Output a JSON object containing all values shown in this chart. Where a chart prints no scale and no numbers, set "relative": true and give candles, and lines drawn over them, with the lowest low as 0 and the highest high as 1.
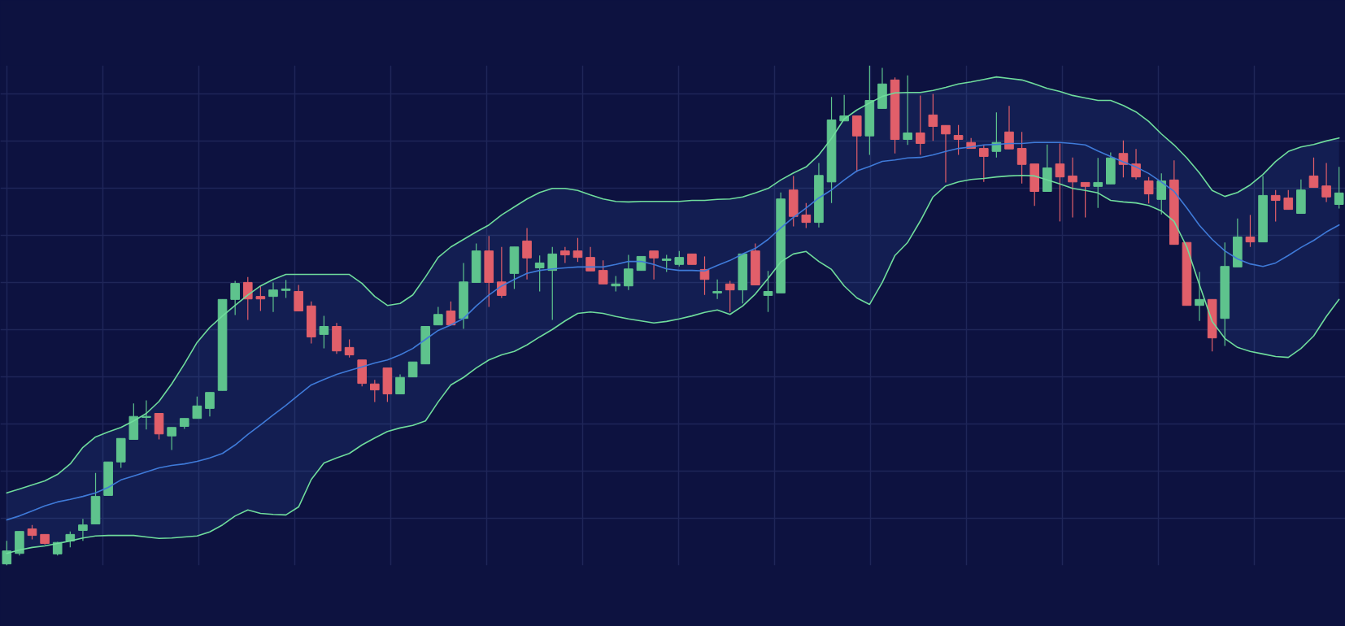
{
  "chart_data": {
    "type": "candlestick",
    "relative": true,
    "grid": true,
    "categories": [
      null,
      null,
      null,
      null,
      null,
      null,
      null,
      null,
      null,
      null,
      null,
      null,
      null,
      null,
      null,
      null,
      null,
      null,
      null,
      null,
      null,
      null,
      null,
      null,
      null,
      null,
      null,
      null,
      null,
      null,
      null,
      null,
      null,
      null,
      null,
      null,
      null,
      null,
      null,
      null,
      null,
      null,
      null,
      null,
      null,
      null,
      null,
      null,
      null,
      null,
      null,
      null,
      null,
      null,
      null,
      null,
      null,
      null,
      null,
      null,
      null,
      null,
      null,
      null,
      null,
      null,
      null,
      null,
      null,
      null,
      null,
      null,
      null,
      null,
      null,
      null,
      null,
      null,
      null,
      null,
      null,
      null,
      null,
      null,
      null,
      null,
      null,
      null,
      null,
      null,
      null,
      null,
      null,
      null,
      null,
      null,
      null,
      null,
      null,
      null,
      null,
      null,
      null,
      null,
      null,
      null
    ],
    "ohlc": [
      [
        0.003,
        0.049,
        0,
        0.029
      ],
      [
        0.024,
        0.068,
        0.02,
        0.068
      ],
      [
        0.073,
        0.081,
        0.052,
        0.06
      ],
      [
        0.062,
        0.062,
        0.042,
        0.044
      ],
      [
        0.023,
        0.047,
        0.02,
        0.046
      ],
      [
        0.049,
        0.068,
        0.036,
        0.062
      ],
      [
        0.07,
        0.093,
        0.049,
        0.081
      ],
      [
        0.083,
        0.185,
        0.083,
        0.138
      ],
      [
        0.14,
        0.207,
        0.14,
        0.207
      ],
      [
        0.207,
        0.254,
        0.195,
        0.254
      ],
      [
        0.252,
        0.324,
        0.252,
        0.298
      ],
      [
        0.296,
        0.33,
        0.272,
        0.298
      ],
      [
        0.304,
        0.304,
        0.252,
        0.263
      ],
      [
        0.259,
        0.276,
        0.231,
        0.276
      ],
      [
        0.278,
        0.294,
        0.273,
        0.294
      ],
      [
        0.294,
        0.338,
        0.294,
        0.319
      ],
      [
        0.314,
        0.346,
        0.298,
        0.346
      ],
      [
        0.35,
        0.532,
        0.35,
        0.532
      ],
      [
        0.532,
        0.569,
        0.501,
        0.564
      ],
      [
        0.566,
        0.577,
        0.491,
        0.533
      ],
      [
        0.538,
        0.558,
        0.509,
        0.533
      ],
      [
        0.538,
        0.566,
        0.507,
        0.551
      ],
      [
        0.55,
        0.571,
        0.535,
        0.553
      ],
      [
        0.548,
        0.561,
        0.509,
        0.509
      ],
      [
        0.519,
        0.528,
        0.444,
        0.457
      ],
      [
        0.462,
        0.499,
        0.434,
        0.478
      ],
      [
        0.478,
        0.485,
        0.423,
        0.429
      ],
      [
        0.436,
        0.452,
        0.416,
        0.421
      ],
      [
        0.411,
        0.411,
        0.358,
        0.364
      ],
      [
        0.363,
        0.371,
        0.327,
        0.351
      ],
      [
        0.395,
        0.395,
        0.327,
        0.343
      ],
      [
        0.343,
        0.382,
        0.343,
        0.376
      ],
      [
        0.377,
        0.407,
        0.377,
        0.407
      ],
      [
        0.403,
        0.478,
        0.403,
        0.478
      ],
      [
        0.481,
        0.517,
        0.481,
        0.502
      ],
      [
        0.509,
        0.528,
        0.481,
        0.481
      ],
      [
        0.494,
        0.605,
        0.473,
        0.567
      ],
      [
        0.566,
        0.644,
        0.566,
        0.629
      ],
      [
        0.629,
        0.659,
        0.517,
        0.566
      ],
      [
        0.567,
        0.637,
        0.535,
        0.54
      ],
      [
        0.584,
        0.637,
        0.553,
        0.637
      ],
      [
        0.649,
        0.675,
        0.572,
        0.615
      ],
      [
        0.595,
        0.62,
        0.548,
        0.605
      ],
      [
        0.59,
        0.637,
        0.491,
        0.623
      ],
      [
        0.629,
        0.637,
        0.605,
        0.621
      ],
      [
        0.629,
        0.655,
        0.607,
        0.616
      ],
      [
        0.616,
        0.637,
        0.589,
        0.589
      ],
      [
        0.59,
        0.61,
        0.563,
        0.563
      ],
      [
        0.559,
        0.579,
        0.548,
        0.563
      ],
      [
        0.559,
        0.621,
        0.551,
        0.593
      ],
      [
        0.59,
        0.618,
        0.59,
        0.618
      ],
      [
        0.629,
        0.629,
        0.572,
        0.615
      ],
      [
        0.61,
        0.621,
        0.587,
        0.613
      ],
      [
        0.602,
        0.629,
        0.598,
        0.616
      ],
      [
        0.623,
        0.623,
        0.602,
        0.602
      ],
      [
        0.592,
        0.618,
        0.541,
        0.572
      ],
      [
        0.545,
        0.572,
        0.533,
        0.548
      ],
      [
        0.563,
        0.569,
        0.507,
        0.551
      ],
      [
        0.551,
        0.623,
        0.524,
        0.623
      ],
      [
        0.629,
        0.644,
        0.561,
        0.561
      ],
      [
        0.54,
        0.589,
        0.507,
        0.548
      ],
      [
        0.545,
        0.746,
        0.545,
        0.733
      ],
      [
        0.751,
        0.779,
        0.678,
        0.698
      ],
      [
        0.701,
        0.725,
        0.675,
        0.686
      ],
      [
        0.686,
        0.805,
        0.676,
        0.78
      ],
      [
        0.767,
        0.937,
        0.725,
        0.891
      ],
      [
        0.889,
        0.941,
        0.889,
        0.899
      ],
      [
        0.899,
        0.899,
        0.787,
        0.859
      ],
      [
        0.859,
        1.0,
        0.821,
        0.93
      ],
      [
        0.914,
        0.995,
        0.914,
        0.963
      ],
      [
        0.971,
        0.976,
        0.824,
        0.852
      ],
      [
        0.852,
        0.98,
        0.841,
        0.865
      ],
      [
        0.865,
        0.94,
        0.821,
        0.844
      ],
      [
        0.901,
        0.943,
        0.849,
        0.878
      ],
      [
        0.88,
        0.88,
        0.766,
        0.863
      ],
      [
        0.86,
        0.881,
        0.821,
        0.852
      ],
      [
        0.846,
        0.855,
        0.834,
        0.834
      ],
      [
        0.834,
        0.841,
        0.767,
        0.818
      ],
      [
        0.828,
        0.906,
        0.816,
        0.846
      ],
      [
        0.867,
        0.919,
        0.833,
        0.833
      ],
      [
        0.834,
        0.867,
        0.764,
        0.802
      ],
      [
        0.803,
        0.803,
        0.719,
        0.748
      ],
      [
        0.748,
        0.842,
        0.748,
        0.795
      ],
      [
        0.803,
        0.844,
        0.688,
        0.777
      ],
      [
        0.779,
        0.816,
        0.696,
        0.767
      ],
      [
        0.766,
        0.766,
        0.696,
        0.758
      ],
      [
        0.758,
        0.815,
        0.715,
        0.766
      ],
      [
        0.763,
        0.826,
        0.763,
        0.815
      ],
      [
        0.824,
        0.85,
        0.776,
        0.802
      ],
      [
        0.803,
        0.833,
        0.772,
        0.777
      ],
      [
        0.769,
        0.777,
        0.724,
        0.743
      ],
      [
        0.732,
        0.784,
        0.702,
        0.769
      ],
      [
        0.771,
        0.81,
        0.642,
        0.642
      ],
      [
        0.646,
        0.646,
        0.52,
        0.52
      ],
      [
        0.52,
        0.587,
        0.489,
        0.532
      ],
      [
        0.532,
        0.532,
        0.428,
        0.455
      ],
      [
        0.494,
        0.646,
        0.439,
        0.598
      ],
      [
        0.597,
        0.694,
        0.597,
        0.657
      ],
      [
        0.657,
        0.701,
        0.637,
        0.647
      ],
      [
        0.647,
        0.779,
        0.647,
        0.74
      ],
      [
        0.74,
        0.751,
        0.688,
        0.73
      ],
      [
        0.735,
        0.751,
        0.712,
        0.712
      ],
      [
        0.704,
        0.772,
        0.704,
        0.751
      ],
      [
        0.779,
        0.816,
        0.756,
        0.756
      ],
      [
        0.759,
        0.805,
        0.727,
        0.737
      ],
      [
        0.722,
        0.797,
        0.714,
        0.745
      ]
    ],
    "colors": [
      "#5ec38d",
      "#5ec38d",
      "#e15f6a",
      "#e15f6a",
      "#5ec38d",
      "#5ec38d",
      "#5ec38d",
      "#5ec38d",
      "#5ec38d",
      "#5ec38d",
      "#5ec38d",
      "#5ec38d",
      "#e15f6a",
      "#5ec38d",
      "#5ec38d",
      "#5ec38d",
      "#5ec38d",
      "#5ec38d",
      "#5ec38d",
      "#e15f6a",
      "#e15f6a",
      "#5ec38d",
      "#5ec38d",
      "#e15f6a",
      "#e15f6a",
      "#5ec38d",
      "#e15f6a",
      "#e15f6a",
      "#e15f6a",
      "#e15f6a",
      "#e15f6a",
      "#5ec38d",
      "#5ec38d",
      "#5ec38d",
      "#5ec38d",
      "#e15f6a",
      "#5ec38d",
      "#5ec38d",
      "#e15f6a",
      "#e15f6a",
      "#5ec38d",
      "#e15f6a",
      "#5ec38d",
      "#5ec38d",
      "#e15f6a",
      "#e15f6a",
      "#e15f6a",
      "#e15f6a",
      "#5ec38d",
      "#5ec38d",
      "#5ec38d",
      "#e15f6a",
      "#5ec38d",
      "#5ec38d",
      "#e15f6a",
      "#e15f6a",
      "#5ec38d",
      "#e15f6a",
      "#5ec38d",
      "#e15f6a",
      "#5ec38d",
      "#5ec38d",
      "#e15f6a",
      "#e15f6a",
      "#5ec38d",
      "#5ec38d",
      "#5ec38d",
      "#e15f6a",
      "#5ec38d",
      "#5ec38d",
      "#e15f6a",
      "#5ec38d",
      "#e15f6a",
      "#e15f6a",
      "#e15f6a",
      "#e15f6a",
      "#e15f6a",
      "#e15f6a",
      "#5ec38d",
      "#e15f6a",
      "#e15f6a",
      "#e15f6a",
      "#5ec38d",
      "#e15f6a",
      "#e15f6a",
      "#e15f6a",
      "#5ec38d",
      "#5ec38d",
      "#e15f6a",
      "#e15f6a",
      "#e15f6a",
      "#5ec38d",
      "#e15f6a",
      "#e15f6a",
      "#5ec38d",
      "#e15f6a",
      "#5ec38d",
      "#5ec38d",
      "#e15f6a",
      "#5ec38d",
      "#e15f6a",
      "#e15f6a",
      "#5ec38d",
      "#e15f6a",
      "#e15f6a",
      "#5ec38d"
    ],
    "series": [
      {
        "type": "line",
        "color": "#6fdc9c",
        "values": [
          0.145,
          0.153,
          0.161,
          0.169,
          0.182,
          0.203,
          0.236,
          0.257,
          0.267,
          0.276,
          0.289,
          0.304,
          0.328,
          0.363,
          0.403,
          0.446,
          0.476,
          0.499,
          0.52,
          0.541,
          0.559,
          0.572,
          0.582,
          0.582,
          0.582,
          0.582,
          0.582,
          0.582,
          0.564,
          0.538,
          0.52,
          0.524,
          0.541,
          0.577,
          0.616,
          0.637,
          0.652,
          0.667,
          0.681,
          0.701,
          0.717,
          0.733,
          0.746,
          0.754,
          0.754,
          0.75,
          0.741,
          0.733,
          0.728,
          0.727,
          0.728,
          0.728,
          0.728,
          0.728,
          0.73,
          0.73,
          0.732,
          0.733,
          0.737,
          0.745,
          0.754,
          0.771,
          0.785,
          0.797,
          0.821,
          0.854,
          0.893,
          0.911,
          0.925,
          0.938,
          0.945,
          0.946,
          0.946,
          0.95,
          0.956,
          0.963,
          0.967,
          0.972,
          0.977,
          0.974,
          0.971,
          0.963,
          0.954,
          0.948,
          0.94,
          0.935,
          0.93,
          0.93,
          0.92,
          0.907,
          0.888,
          0.863,
          0.841,
          0.815,
          0.785,
          0.75,
          0.738,
          0.746,
          0.761,
          0.782,
          0.808,
          0.828,
          0.837,
          0.842,
          0.849,
          0.855
        ]
      },
      {
        "type": "line",
        "color": "#3f7ad8",
        "values": [
          0.091,
          0.099,
          0.109,
          0.119,
          0.127,
          0.132,
          0.138,
          0.145,
          0.156,
          0.171,
          0.179,
          0.187,
          0.195,
          0.2,
          0.203,
          0.208,
          0.215,
          0.224,
          0.241,
          0.262,
          0.281,
          0.301,
          0.32,
          0.341,
          0.361,
          0.372,
          0.382,
          0.39,
          0.397,
          0.405,
          0.411,
          0.421,
          0.434,
          0.452,
          0.47,
          0.481,
          0.494,
          0.519,
          0.541,
          0.559,
          0.572,
          0.584,
          0.59,
          0.593,
          0.595,
          0.597,
          0.597,
          0.597,
          0.602,
          0.608,
          0.608,
          0.602,
          0.593,
          0.59,
          0.59,
          0.589,
          0.6,
          0.61,
          0.623,
          0.634,
          0.652,
          0.675,
          0.696,
          0.715,
          0.735,
          0.751,
          0.771,
          0.789,
          0.798,
          0.808,
          0.811,
          0.815,
          0.816,
          0.821,
          0.828,
          0.834,
          0.837,
          0.841,
          0.842,
          0.844,
          0.844,
          0.846,
          0.846,
          0.846,
          0.844,
          0.841,
          0.829,
          0.818,
          0.807,
          0.797,
          0.784,
          0.767,
          0.748,
          0.715,
          0.68,
          0.652,
          0.629,
          0.613,
          0.603,
          0.598,
          0.605,
          0.62,
          0.636,
          0.65,
          0.667,
          0.681
        ],
        "upper": [
          0.145,
          0.153,
          0.161,
          0.169,
          0.182,
          0.203,
          0.236,
          0.257,
          0.267,
          0.276,
          0.289,
          0.304,
          0.328,
          0.363,
          0.403,
          0.446,
          0.476,
          0.499,
          0.52,
          0.541,
          0.559,
          0.572,
          0.582,
          0.582,
          0.582,
          0.582,
          0.582,
          0.582,
          0.564,
          0.538,
          0.52,
          0.524,
          0.541,
          0.577,
          0.616,
          0.637,
          0.652,
          0.667,
          0.681,
          0.701,
          0.717,
          0.733,
          0.746,
          0.754,
          0.754,
          0.75,
          0.741,
          0.733,
          0.728,
          0.727,
          0.728,
          0.728,
          0.728,
          0.728,
          0.73,
          0.73,
          0.732,
          0.733,
          0.737,
          0.745,
          0.754,
          0.771,
          0.785,
          0.797,
          0.821,
          0.854,
          0.893,
          0.911,
          0.925,
          0.938,
          0.945,
          0.946,
          0.946,
          0.95,
          0.956,
          0.963,
          0.967,
          0.972,
          0.977,
          0.974,
          0.971,
          0.963,
          0.954,
          0.948,
          0.94,
          0.935,
          0.93,
          0.93,
          0.92,
          0.907,
          0.888,
          0.863,
          0.841,
          0.815,
          0.785,
          0.75,
          0.738,
          0.746,
          0.761,
          0.782,
          0.808,
          0.828,
          0.837,
          0.842,
          0.849,
          0.855
        ],
        "lower": [
          0.024,
          0.031,
          0.036,
          0.039,
          0.044,
          0.049,
          0.055,
          0.059,
          0.06,
          0.06,
          0.06,
          0.057,
          0.054,
          0.055,
          0.057,
          0.059,
          0.067,
          0.081,
          0.099,
          0.111,
          0.104,
          0.102,
          0.101,
          0.117,
          0.172,
          0.205,
          0.215,
          0.224,
          0.241,
          0.255,
          0.268,
          0.275,
          0.28,
          0.289,
          0.327,
          0.361,
          0.376,
          0.395,
          0.411,
          0.421,
          0.428,
          0.441,
          0.457,
          0.472,
          0.489,
          0.504,
          0.507,
          0.504,
          0.498,
          0.493,
          0.489,
          0.485,
          0.488,
          0.493,
          0.499,
          0.506,
          0.511,
          0.502,
          0.519,
          0.543,
          0.574,
          0.607,
          0.623,
          0.628,
          0.608,
          0.592,
          0.559,
          0.535,
          0.522,
          0.566,
          0.62,
          0.646,
          0.689,
          0.737,
          0.759,
          0.767,
          0.772,
          0.774,
          0.777,
          0.779,
          0.78,
          0.779,
          0.771,
          0.763,
          0.754,
          0.75,
          0.745,
          0.73,
          0.727,
          0.725,
          0.72,
          0.709,
          0.688,
          0.637,
          0.561,
          0.488,
          0.454,
          0.436,
          0.428,
          0.423,
          0.418,
          0.416,
          0.434,
          0.459,
          0.498,
          0.532
        ]
      },
      {
        "type": "line",
        "color": "#6fdc9c",
        "values": [
          0.024,
          0.031,
          0.036,
          0.039,
          0.044,
          0.049,
          0.055,
          0.059,
          0.06,
          0.06,
          0.06,
          0.057,
          0.054,
          0.055,
          0.057,
          0.059,
          0.067,
          0.081,
          0.099,
          0.111,
          0.104,
          0.102,
          0.101,
          0.117,
          0.172,
          0.205,
          0.215,
          0.224,
          0.241,
          0.255,
          0.268,
          0.275,
          0.28,
          0.289,
          0.327,
          0.361,
          0.376,
          0.395,
          0.411,
          0.421,
          0.428,
          0.441,
          0.457,
          0.472,
          0.489,
          0.504,
          0.507,
          0.504,
          0.498,
          0.493,
          0.489,
          0.485,
          0.488,
          0.493,
          0.499,
          0.506,
          0.511,
          0.502,
          0.519,
          0.543,
          0.574,
          0.607,
          0.623,
          0.628,
          0.608,
          0.592,
          0.559,
          0.535,
          0.522,
          0.566,
          0.62,
          0.646,
          0.689,
          0.737,
          0.759,
          0.767,
          0.772,
          0.774,
          0.777,
          0.779,
          0.78,
          0.779,
          0.771,
          0.763,
          0.754,
          0.75,
          0.745,
          0.73,
          0.727,
          0.725,
          0.72,
          0.709,
          0.688,
          0.637,
          0.561,
          0.488,
          0.454,
          0.436,
          0.428,
          0.423,
          0.418,
          0.416,
          0.434,
          0.459,
          0.498,
          0.532
        ]
      }
    ]
  }
}
